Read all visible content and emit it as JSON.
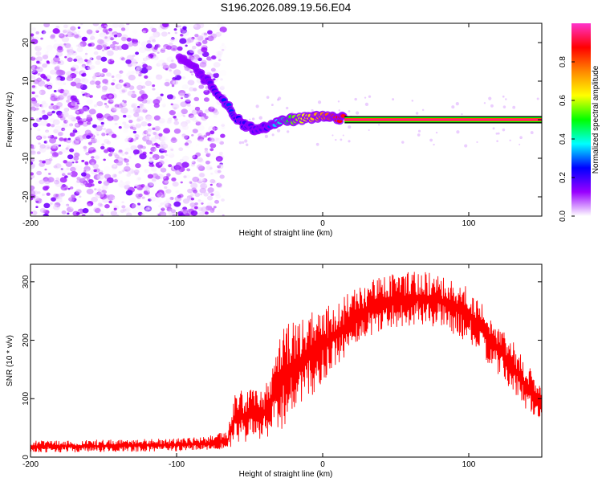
{
  "title": "S196.2026.089.19.56.E04",
  "chart_data": [
    {
      "type": "heatmap",
      "title": "S196.2026.089.19.56.E04",
      "xlabel": "Height of straight line (km)",
      "ylabel": "Frequency (Hz)",
      "xlim": [
        -200,
        150
      ],
      "ylim": [
        -25,
        25
      ],
      "xticks": [
        -200,
        -100,
        0,
        100
      ],
      "yticks": [
        -20,
        -10,
        0,
        10,
        20
      ],
      "colorbar": {
        "label": "Normalized spectral amplitude",
        "range": [
          0,
          1
        ],
        "ticks": [
          "0.0",
          "0.2",
          "0.4",
          "0.6",
          "0.8"
        ],
        "colors": [
          "#ff33cc",
          "#ff0000",
          "#ff8800",
          "#ffff00",
          "#00ff00",
          "#00ffff",
          "#0000ff",
          "#9900ff",
          "#ffffff"
        ]
      },
      "signal_trace": [
        {
          "x": -98,
          "y": 16,
          "amp": 0.12
        },
        {
          "x": -90,
          "y": 14,
          "amp": 0.14
        },
        {
          "x": -82,
          "y": 11,
          "amp": 0.15
        },
        {
          "x": -76,
          "y": 9,
          "amp": 0.18
        },
        {
          "x": -70,
          "y": 6,
          "amp": 0.25
        },
        {
          "x": -65,
          "y": 3.5,
          "amp": 0.28
        },
        {
          "x": -60,
          "y": 1,
          "amp": 0.26
        },
        {
          "x": -55,
          "y": -1,
          "amp": 0.22
        },
        {
          "x": -50,
          "y": -2,
          "amp": 0.2
        },
        {
          "x": -45,
          "y": -2.5,
          "amp": 0.18
        },
        {
          "x": -40,
          "y": -2,
          "amp": 0.18
        },
        {
          "x": -35,
          "y": -1,
          "amp": 0.3
        },
        {
          "x": -30,
          "y": -0.5,
          "amp": 0.4
        },
        {
          "x": -25,
          "y": 0,
          "amp": 0.45
        },
        {
          "x": -20,
          "y": 0,
          "amp": 0.55
        },
        {
          "x": -15,
          "y": 0.3,
          "amp": 0.6
        },
        {
          "x": -10,
          "y": 0.5,
          "amp": 0.65
        },
        {
          "x": -5,
          "y": 0.6,
          "amp": 0.7
        },
        {
          "x": 0,
          "y": 0.8,
          "amp": 0.75
        },
        {
          "x": 5,
          "y": 0.8,
          "amp": 0.8
        },
        {
          "x": 10,
          "y": 0.5,
          "amp": 0.85
        },
        {
          "x": 15,
          "y": 0.3,
          "amp": 0.9
        }
      ],
      "steady_tone": {
        "x_start": 15,
        "x_end": 150,
        "y": 0,
        "amp": 0.95
      }
    },
    {
      "type": "line",
      "xlabel": "Height of straight line (km)",
      "ylabel": "SNR (10 * v/v)",
      "xlim": [
        -200,
        150
      ],
      "ylim": [
        0,
        330
      ],
      "xticks": [
        -200,
        -100,
        0,
        100
      ],
      "yticks": [
        0,
        100,
        200,
        300
      ],
      "line_color": "#ff0000",
      "envelope": {
        "x": [
          -200,
          -150,
          -100,
          -80,
          -65,
          -60,
          -50,
          -40,
          -30,
          -25,
          -20,
          -10,
          0,
          10,
          20,
          30,
          40,
          50,
          60,
          70,
          80,
          90,
          100,
          110,
          120,
          130,
          140,
          150
        ],
        "low": [
          8,
          8,
          10,
          12,
          14,
          20,
          25,
          30,
          40,
          55,
          70,
          95,
          125,
          155,
          185,
          205,
          215,
          222,
          225,
          225,
          222,
          210,
          195,
          170,
          140,
          110,
          80,
          55
        ],
        "high": [
          28,
          30,
          32,
          35,
          45,
          110,
          120,
          120,
          200,
          230,
          240,
          250,
          255,
          265,
          285,
          300,
          310,
          315,
          318,
          320,
          315,
          305,
          290,
          260,
          230,
          200,
          160,
          120
        ]
      }
    }
  ]
}
